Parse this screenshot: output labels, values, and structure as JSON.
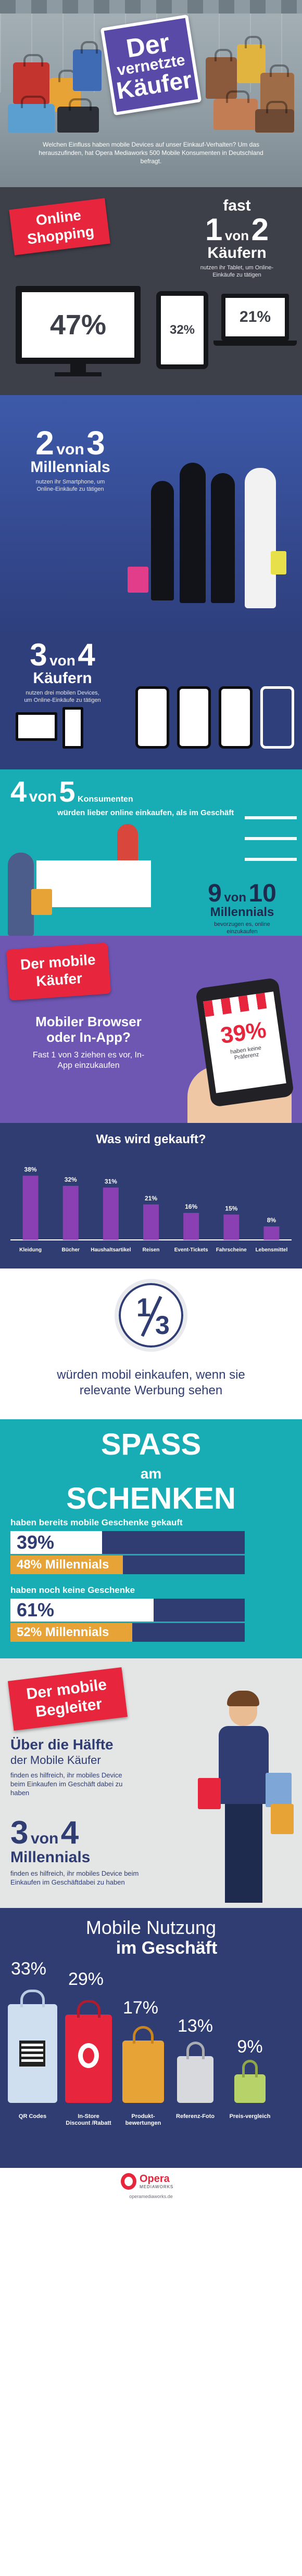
{
  "header": {
    "title_l1": "Der",
    "title_l2": "vernetzte",
    "title_l3": "Käufer",
    "intro": "Welchen Einfluss haben mobile Devices auf unser Einkauf-Verhalten? Um das herauszufinden, hat Opera Mediaworks 500 Mobile Konsumenten in Deutschland befragt."
  },
  "online": {
    "label_l1": "Online",
    "label_l2": "Shopping",
    "stat_prefix": "fast",
    "stat_num": "1",
    "stat_von": "von",
    "stat_den": "2",
    "stat_word": "Käufern",
    "stat_sub": "nutzen ihr Tablet, um Online-Einkäufe zu tätigen",
    "tv_value": "47%",
    "tablet_value": "32%",
    "laptop_value": "21%"
  },
  "millennials": {
    "num": "2",
    "von": "von",
    "den": "3",
    "word": "Millennials",
    "sub": "nutzen ihr Smartphone, um Online-Einkäufe zu tätigen"
  },
  "three_four": {
    "num": "3",
    "von": "von",
    "den": "4",
    "word": "Käufern",
    "sub": "nutzen drei mobilen Devices, um Online-Einkäufe zu tätigen"
  },
  "four_five": {
    "num": "4",
    "von": "von",
    "den": "5",
    "word": "Konsumenten",
    "sub": "würden lieber online einkaufen, als im Geschäft",
    "m_num": "9",
    "m_von": "von",
    "m_den": "10",
    "m_word": "Millennials",
    "m_sub": "bevorzugen es, online einzukaufen"
  },
  "mobile_buyer": {
    "tag_l1": "Der mobile",
    "tag_l2": "Käufer",
    "question_l1": "Mobiler Browser",
    "question_l2": "oder In-App?",
    "answer": "Fast 1 von 3 ziehen es vor, In-App einzukaufen",
    "phone_pct": "39%",
    "phone_sub": "haben keine Präferenz"
  },
  "chart": {
    "title": "Was wird gekauft?",
    "color": "#8a3fb2"
  },
  "chart_data": {
    "type": "bar",
    "title": "Was wird gekauft?",
    "categories": [
      "Kleidung",
      "Bücher",
      "Haushaltsartikel",
      "Reisen",
      "Event-Tickets",
      "Fahrscheine",
      "Lebensmittel"
    ],
    "values": [
      38,
      32,
      31,
      21,
      16,
      15,
      8
    ],
    "value_labels": [
      "38%",
      "32%",
      "31%",
      "21%",
      "16%",
      "15%",
      "8%"
    ],
    "ylim": [
      0,
      40
    ]
  },
  "third": {
    "fraction_num": "1",
    "fraction_den": "3",
    "text_l1": "würden mobil einkaufen, wenn sie",
    "text_l2": "relevante Werbung sehen"
  },
  "gifts": {
    "title_l1": "SPASS",
    "title_am": "am",
    "title_l2": "SCHENKEN",
    "bought_label": "haben bereits mobile Geschenke gekauft",
    "bought_total": "39%",
    "bought_total_frac": 0.39,
    "bought_mill": "48% Millennials",
    "bought_mill_frac": 0.48,
    "none_label": "haben noch keine Geschenke",
    "none_total": "61%",
    "none_total_frac": 0.61,
    "none_mill": "52% Millennials",
    "none_mill_frac": 0.52
  },
  "companion": {
    "tag_l1": "Der mobile",
    "tag_l2": "Begleiter",
    "head_l1": "Über die Hälfte",
    "head_l2": "der Mobile Käufer",
    "head_sub": "finden es hilfreich, ihr mobiles Device beim Einkaufen im Geschäft dabei zu haben",
    "num": "3",
    "von": "von",
    "den": "4",
    "word": "Millennials",
    "sub": "finden es hilfreich, ihr mobiles Device beim Einkaufen im Geschäftdabei zu haben"
  },
  "usage": {
    "title_l1": "Mobile Nutzung",
    "title_l2": "im Geschäft",
    "items": [
      {
        "pct": "33%",
        "label": "QR Codes"
      },
      {
        "pct": "29%",
        "label": "In-Store Discount /Rabatt"
      },
      {
        "pct": "17%",
        "label": "Produkt-bewertungen"
      },
      {
        "pct": "13%",
        "label": "Referenz-Foto"
      },
      {
        "pct": "9%",
        "label": "Preis-vergleich"
      }
    ]
  },
  "footer": {
    "brand": "Opera",
    "brand_sub": "MEDIAWORKS",
    "url": "operamediaworks.de"
  }
}
